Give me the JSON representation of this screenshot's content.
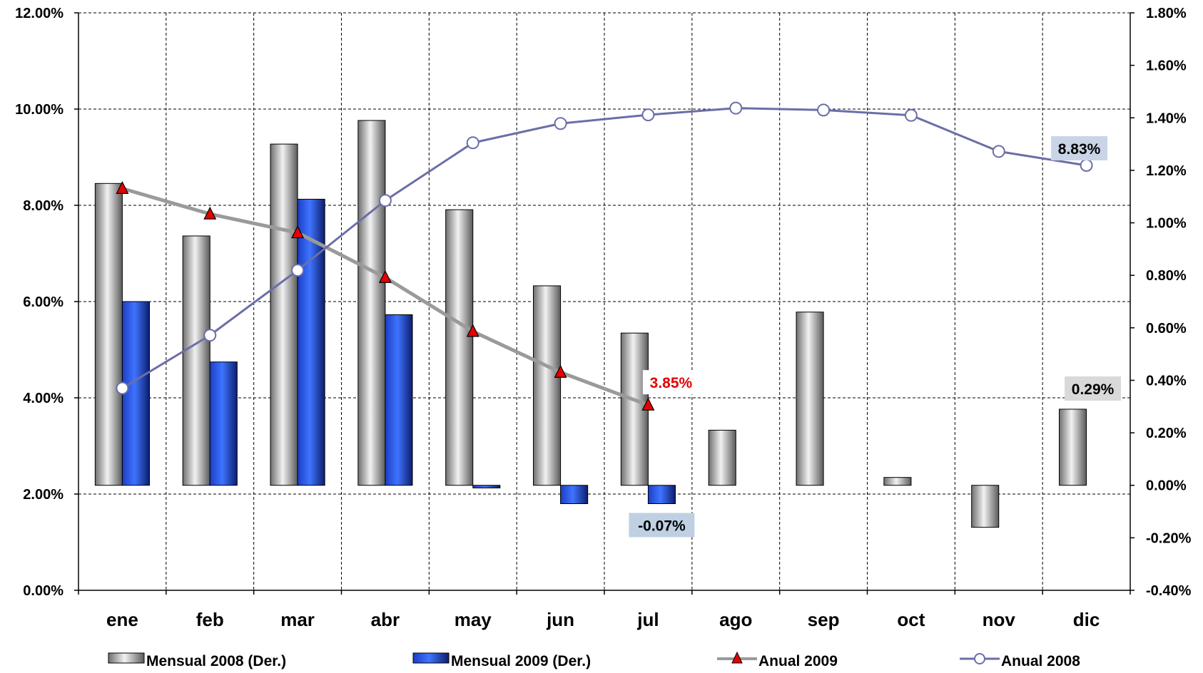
{
  "chart_data": {
    "type": "bar",
    "categories": [
      "ene",
      "feb",
      "mar",
      "abr",
      "may",
      "jun",
      "jul",
      "ago",
      "sep",
      "oct",
      "nov",
      "dic"
    ],
    "y_left": {
      "ylim": [
        0,
        12
      ],
      "ticks": [
        0,
        2,
        4,
        6,
        8,
        10,
        12
      ],
      "tick_labels": [
        "0.00%",
        "2.00%",
        "4.00%",
        "6.00%",
        "8.00%",
        "10.00%",
        "12.00%"
      ]
    },
    "y_right": {
      "ylim": [
        -0.4,
        1.8
      ],
      "ticks": [
        -0.4,
        -0.2,
        0,
        0.2,
        0.4,
        0.6,
        0.8,
        1.0,
        1.2,
        1.4,
        1.6,
        1.8
      ],
      "tick_labels": [
        "-0.40%",
        "-0.20%",
        "0.00%",
        "0.20%",
        "0.40%",
        "0.60%",
        "0.80%",
        "1.00%",
        "1.20%",
        "1.40%",
        "1.60%",
        "1.80%"
      ]
    },
    "grid": true,
    "legend_position": "bottom",
    "series": [
      {
        "name": "Mensual 2008 (Der.)",
        "kind": "bar",
        "axis": "right",
        "color": "#9e9e9e",
        "values": [
          1.15,
          0.95,
          1.3,
          1.39,
          1.05,
          0.76,
          0.58,
          0.21,
          0.66,
          0.03,
          -0.16,
          0.29
        ]
      },
      {
        "name": "Mensual 2009 (Der.)",
        "kind": "bar",
        "axis": "right",
        "color": "#2a56e0",
        "values": [
          0.7,
          0.47,
          1.09,
          0.65,
          -0.01,
          -0.07,
          -0.07,
          null,
          null,
          null,
          null,
          null
        ]
      },
      {
        "name": "Anual 2009",
        "kind": "line",
        "axis": "left",
        "color": "#9a9a9a",
        "marker": "triangle",
        "marker_color": "#e60000",
        "values": [
          8.35,
          7.82,
          7.43,
          6.5,
          5.38,
          4.53,
          3.85,
          null,
          null,
          null,
          null,
          null
        ]
      },
      {
        "name": "Anual 2008",
        "kind": "line",
        "axis": "left",
        "color": "#6b6ea8",
        "marker": "circle",
        "marker_color": "#ffffff",
        "values": [
          4.2,
          5.3,
          6.65,
          8.1,
          9.3,
          9.7,
          9.88,
          10.02,
          9.98,
          9.87,
          9.12,
          8.83
        ]
      }
    ],
    "annotations": [
      {
        "text": "8.83%",
        "series": "Anual 2008",
        "category": "dic",
        "color": "#000000",
        "bg": "#c9d5e6"
      },
      {
        "text": "3.85%",
        "series": "Anual 2009",
        "category": "jul",
        "color": "#e60000",
        "bg": "#ffffff"
      },
      {
        "text": "-0.07%",
        "series": "Mensual 2009 (Der.)",
        "category": "jul",
        "color": "#000000",
        "bg": "#bfd0e3"
      },
      {
        "text": "0.29%",
        "series": "Mensual 2008 (Der.)",
        "category": "dic",
        "color": "#000000",
        "bg": "#d9d9d9"
      }
    ]
  }
}
